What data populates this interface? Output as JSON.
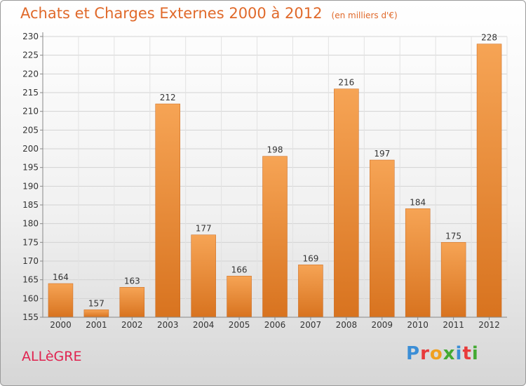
{
  "header": {
    "title": "Achats et Charges Externes 2000 à 2012",
    "unit": "(en milliers d'€)"
  },
  "footer": {
    "commune": "ALLèGRE",
    "brand_letters": [
      "P",
      "r",
      "o",
      "x",
      "i",
      "t",
      "i"
    ],
    "brand_colors": [
      "#3b8ed6",
      "#e83a3a",
      "#f0a020",
      "#44aa33",
      "#3b8ed6",
      "#e83a3a",
      "#44aa33"
    ]
  },
  "colors": {
    "bar_light": "#f6a455",
    "bar_dark": "#d8731f",
    "title": "#e0692a"
  },
  "chart_data": {
    "type": "bar",
    "categories": [
      "2000",
      "2001",
      "2002",
      "2003",
      "2004",
      "2005",
      "2006",
      "2007",
      "2008",
      "2009",
      "2010",
      "2011",
      "2012"
    ],
    "values": [
      164,
      157,
      163,
      212,
      177,
      166,
      198,
      169,
      216,
      197,
      184,
      175,
      228
    ],
    "data_labels": [
      "164",
      "157",
      "163",
      "212",
      "177",
      "166",
      "198",
      "169",
      "216",
      "197",
      "184",
      "175",
      "228"
    ],
    "title": "Achats et Charges Externes 2000 à 2012",
    "ylim": [
      155,
      230
    ],
    "yticks": [
      155,
      160,
      165,
      170,
      175,
      180,
      185,
      190,
      195,
      200,
      205,
      210,
      215,
      220,
      225,
      230
    ],
    "grid": true
  }
}
